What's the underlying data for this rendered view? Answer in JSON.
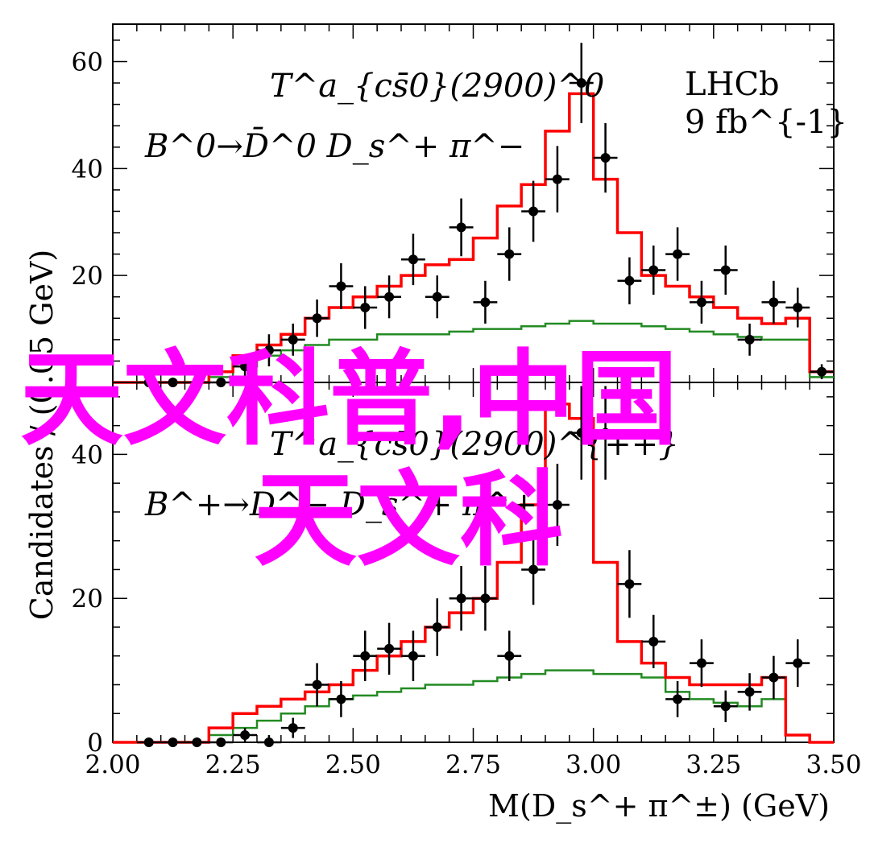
{
  "chart_data": [
    {
      "type": "histogram",
      "panel": "top",
      "xlim": [
        2.0,
        3.5
      ],
      "ylim": [
        0,
        67
      ],
      "yticks": [
        20,
        40,
        60
      ],
      "annotation_line1": "T^a_{cs̄0}(2900)^0",
      "annotation_line2": "B^0→D̄^0 D_s^+ π^−",
      "experiment_label": "LHCb",
      "luminosity_label": "9 fb^{-1}",
      "data_points": [
        {
          "x": 2.075,
          "y": 0,
          "err": 0
        },
        {
          "x": 2.125,
          "y": 0,
          "err": 0
        },
        {
          "x": 2.175,
          "y": 0,
          "err": 0
        },
        {
          "x": 2.225,
          "y": 0,
          "err": 0
        },
        {
          "x": 2.275,
          "y": 3,
          "err": 2
        },
        {
          "x": 2.325,
          "y": 6,
          "err": 3
        },
        {
          "x": 2.375,
          "y": 8,
          "err": 3
        },
        {
          "x": 2.425,
          "y": 12,
          "err": 3.5
        },
        {
          "x": 2.475,
          "y": 18,
          "err": 4.3
        },
        {
          "x": 2.525,
          "y": 14,
          "err": 4
        },
        {
          "x": 2.575,
          "y": 16,
          "err": 4
        },
        {
          "x": 2.625,
          "y": 23,
          "err": 4.8
        },
        {
          "x": 2.675,
          "y": 16,
          "err": 4
        },
        {
          "x": 2.725,
          "y": 29,
          "err": 5.4
        },
        {
          "x": 2.775,
          "y": 15,
          "err": 4
        },
        {
          "x": 2.825,
          "y": 24,
          "err": 5
        },
        {
          "x": 2.875,
          "y": 32,
          "err": 5.7
        },
        {
          "x": 2.925,
          "y": 38,
          "err": 6.2
        },
        {
          "x": 2.975,
          "y": 56,
          "err": 7.5
        },
        {
          "x": 3.025,
          "y": 42,
          "err": 6.5
        },
        {
          "x": 3.075,
          "y": 19,
          "err": 4.4
        },
        {
          "x": 3.125,
          "y": 21,
          "err": 4.6
        },
        {
          "x": 3.175,
          "y": 24,
          "err": 5
        },
        {
          "x": 3.225,
          "y": 15,
          "err": 4
        },
        {
          "x": 3.275,
          "y": 21,
          "err": 4.6
        },
        {
          "x": 3.325,
          "y": 8,
          "err": 3
        },
        {
          "x": 3.375,
          "y": 15,
          "err": 4
        },
        {
          "x": 3.425,
          "y": 14,
          "err": 3.7
        },
        {
          "x": 3.475,
          "y": 2,
          "err": 1.4
        }
      ],
      "total_fit_red": [
        0,
        0,
        0,
        0,
        2,
        5,
        7,
        9,
        12,
        14,
        16,
        18,
        20,
        22,
        23,
        27,
        33,
        37,
        47,
        54,
        38,
        28,
        20,
        18,
        16,
        14,
        12,
        11,
        12,
        2
      ],
      "component_green": [
        0,
        0,
        0,
        0,
        1,
        3,
        5,
        6,
        7,
        8,
        8,
        9,
        9,
        9,
        9.5,
        10,
        10,
        10.5,
        11,
        11.5,
        11,
        11,
        10.5,
        10,
        9.5,
        9,
        8.5,
        8,
        8,
        1
      ],
      "bin_edges_start": 2.0,
      "bin_width": 0.05
    },
    {
      "type": "histogram",
      "panel": "bottom",
      "xlim": [
        2.0,
        3.5
      ],
      "ylim": [
        0,
        50
      ],
      "yticks": [
        0,
        20,
        40
      ],
      "xticks": [
        "2.00",
        "2.25",
        "2.50",
        "2.75",
        "3.00",
        "3.25",
        "3.50"
      ],
      "xlabel": "M(D_s^+ π^±) (GeV)",
      "ylabel": "Candidates / (0.05 GeV)",
      "annotation_line1": "T^a_{cs̄0}(2900)^{++}",
      "annotation_line2": "B^+→D^− D_s^+ π^+",
      "data_points": [
        {
          "x": 2.075,
          "y": 0,
          "err": 0
        },
        {
          "x": 2.125,
          "y": 0,
          "err": 0
        },
        {
          "x": 2.175,
          "y": 0,
          "err": 0
        },
        {
          "x": 2.225,
          "y": 0,
          "err": 0
        },
        {
          "x": 2.275,
          "y": 1,
          "err": 1
        },
        {
          "x": 2.325,
          "y": 0,
          "err": 1
        },
        {
          "x": 2.375,
          "y": 2,
          "err": 1.4
        },
        {
          "x": 2.425,
          "y": 8,
          "err": 3
        },
        {
          "x": 2.475,
          "y": 6,
          "err": 2.5
        },
        {
          "x": 2.525,
          "y": 12,
          "err": 3.5
        },
        {
          "x": 2.575,
          "y": 13,
          "err": 3.6
        },
        {
          "x": 2.625,
          "y": 12,
          "err": 3.5
        },
        {
          "x": 2.675,
          "y": 16,
          "err": 4
        },
        {
          "x": 2.725,
          "y": 20,
          "err": 4.5
        },
        {
          "x": 2.775,
          "y": 20,
          "err": 4.5
        },
        {
          "x": 2.825,
          "y": 12,
          "err": 3.5
        },
        {
          "x": 2.875,
          "y": 24,
          "err": 4.9
        },
        {
          "x": 2.925,
          "y": 33,
          "err": 5.7
        },
        {
          "x": 2.975,
          "y": 43,
          "err": 6.5
        },
        {
          "x": 3.025,
          "y": 43,
          "err": 6.5
        },
        {
          "x": 3.075,
          "y": 22,
          "err": 4.7
        },
        {
          "x": 3.125,
          "y": 14,
          "err": 3.7
        },
        {
          "x": 3.175,
          "y": 6,
          "err": 2.5
        },
        {
          "x": 3.225,
          "y": 11,
          "err": 3.3
        },
        {
          "x": 3.275,
          "y": 5,
          "err": 2.2
        },
        {
          "x": 3.325,
          "y": 7,
          "err": 2.6
        },
        {
          "x": 3.375,
          "y": 9,
          "err": 3
        },
        {
          "x": 3.425,
          "y": 11,
          "err": 3.3
        }
      ],
      "total_fit_red": [
        0,
        0,
        0,
        0,
        2,
        4,
        5,
        6,
        7,
        8,
        10,
        12,
        14,
        16,
        18,
        20,
        25,
        33,
        47,
        45,
        25,
        14,
        11,
        9,
        8,
        8,
        8,
        9,
        1,
        0
      ],
      "component_green": [
        0,
        0,
        0,
        0,
        1,
        2,
        3,
        4,
        5,
        6,
        6.5,
        7,
        7.5,
        8,
        8,
        8.5,
        9,
        9.5,
        10,
        10,
        9.5,
        9.5,
        9,
        7,
        6,
        5.5,
        5,
        6,
        1,
        0
      ],
      "bin_edges_start": 2.0,
      "bin_width": 0.05
    }
  ],
  "watermark": {
    "line1": "天文科普,中国",
    "line2": "天文科",
    "color": "#ff00ff"
  },
  "colors": {
    "fit_total": "#ff0000",
    "fit_component": "#228b22",
    "data": "#000000"
  }
}
